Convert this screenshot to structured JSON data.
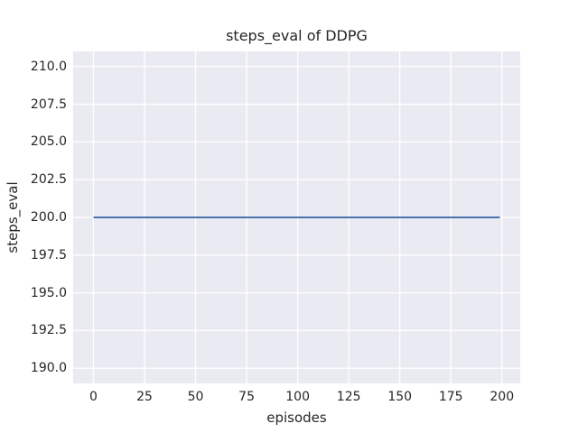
{
  "chart_data": {
    "type": "line",
    "title": "steps_eval of DDPG",
    "xlabel": "episodes",
    "ylabel": "steps_eval",
    "xlim": [
      -9.95,
      208.95
    ],
    "ylim": [
      189.0,
      211.0
    ],
    "grid": true,
    "legend_position": "none",
    "xticks": [
      {
        "value": 0,
        "label": "0"
      },
      {
        "value": 25,
        "label": "25"
      },
      {
        "value": 50,
        "label": "50"
      },
      {
        "value": 75,
        "label": "75"
      },
      {
        "value": 100,
        "label": "100"
      },
      {
        "value": 125,
        "label": "125"
      },
      {
        "value": 150,
        "label": "150"
      },
      {
        "value": 175,
        "label": "175"
      },
      {
        "value": 200,
        "label": "200"
      }
    ],
    "yticks": [
      {
        "value": 190.0,
        "label": "190.0"
      },
      {
        "value": 192.5,
        "label": "192.5"
      },
      {
        "value": 195.0,
        "label": "195.0"
      },
      {
        "value": 197.5,
        "label": "197.5"
      },
      {
        "value": 200.0,
        "label": "200.0"
      },
      {
        "value": 202.5,
        "label": "202.5"
      },
      {
        "value": 205.0,
        "label": "205.0"
      },
      {
        "value": 207.5,
        "label": "207.5"
      },
      {
        "value": 210.0,
        "label": "210.0"
      }
    ],
    "series": [
      {
        "name": "steps_eval",
        "color": "#4C72B0",
        "x": [
          0,
          199
        ],
        "y": [
          200,
          200
        ],
        "description": "constant value 200 across episodes 0 to 199"
      }
    ],
    "colors": {
      "figure_bg": "#FFFFFF",
      "plot_bg": "#EAEAF2",
      "grid": "#FFFFFF",
      "text": "#262626"
    }
  }
}
